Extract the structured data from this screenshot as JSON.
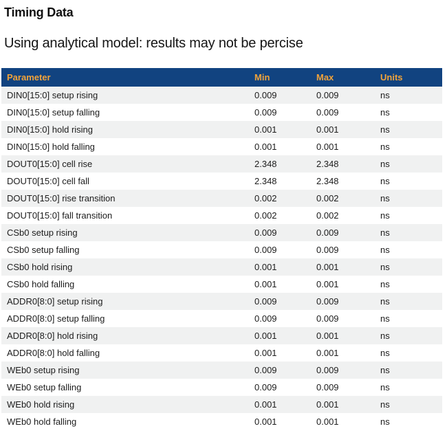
{
  "page": {
    "title": "Timing Data",
    "subtitle": "Using analytical model: results may not be percise"
  },
  "colors": {
    "table_header_bg": "#114380",
    "table_header_text": "#F1A33A",
    "row_alt_bg": "#F0F1F1",
    "body_text": "#1c1c1c"
  },
  "table": {
    "columns": [
      "Parameter",
      "Min",
      "Max",
      "Units"
    ],
    "rows": [
      {
        "parameter": "DIN0[15:0] setup rising",
        "min": "0.009",
        "max": "0.009",
        "units": "ns"
      },
      {
        "parameter": "DIN0[15:0] setup falling",
        "min": "0.009",
        "max": "0.009",
        "units": "ns"
      },
      {
        "parameter": "DIN0[15:0] hold rising",
        "min": "0.001",
        "max": "0.001",
        "units": "ns"
      },
      {
        "parameter": "DIN0[15:0] hold falling",
        "min": "0.001",
        "max": "0.001",
        "units": "ns"
      },
      {
        "parameter": "DOUT0[15:0] cell rise",
        "min": "2.348",
        "max": "2.348",
        "units": "ns"
      },
      {
        "parameter": "DOUT0[15:0] cell fall",
        "min": "2.348",
        "max": "2.348",
        "units": "ns"
      },
      {
        "parameter": "DOUT0[15:0] rise transition",
        "min": "0.002",
        "max": "0.002",
        "units": "ns"
      },
      {
        "parameter": "DOUT0[15:0] fall transition",
        "min": "0.002",
        "max": "0.002",
        "units": "ns"
      },
      {
        "parameter": "CSb0 setup rising",
        "min": "0.009",
        "max": "0.009",
        "units": "ns"
      },
      {
        "parameter": "CSb0 setup falling",
        "min": "0.009",
        "max": "0.009",
        "units": "ns"
      },
      {
        "parameter": "CSb0 hold rising",
        "min": "0.001",
        "max": "0.001",
        "units": "ns"
      },
      {
        "parameter": "CSb0 hold falling",
        "min": "0.001",
        "max": "0.001",
        "units": "ns"
      },
      {
        "parameter": "ADDR0[8:0] setup rising",
        "min": "0.009",
        "max": "0.009",
        "units": "ns"
      },
      {
        "parameter": "ADDR0[8:0] setup falling",
        "min": "0.009",
        "max": "0.009",
        "units": "ns"
      },
      {
        "parameter": "ADDR0[8:0] hold rising",
        "min": "0.001",
        "max": "0.001",
        "units": "ns"
      },
      {
        "parameter": "ADDR0[8:0] hold falling",
        "min": "0.001",
        "max": "0.001",
        "units": "ns"
      },
      {
        "parameter": "WEb0 setup rising",
        "min": "0.009",
        "max": "0.009",
        "units": "ns"
      },
      {
        "parameter": "WEb0 setup falling",
        "min": "0.009",
        "max": "0.009",
        "units": "ns"
      },
      {
        "parameter": "WEb0 hold rising",
        "min": "0.001",
        "max": "0.001",
        "units": "ns"
      },
      {
        "parameter": "WEb0 hold falling",
        "min": "0.001",
        "max": "0.001",
        "units": "ns"
      }
    ]
  }
}
